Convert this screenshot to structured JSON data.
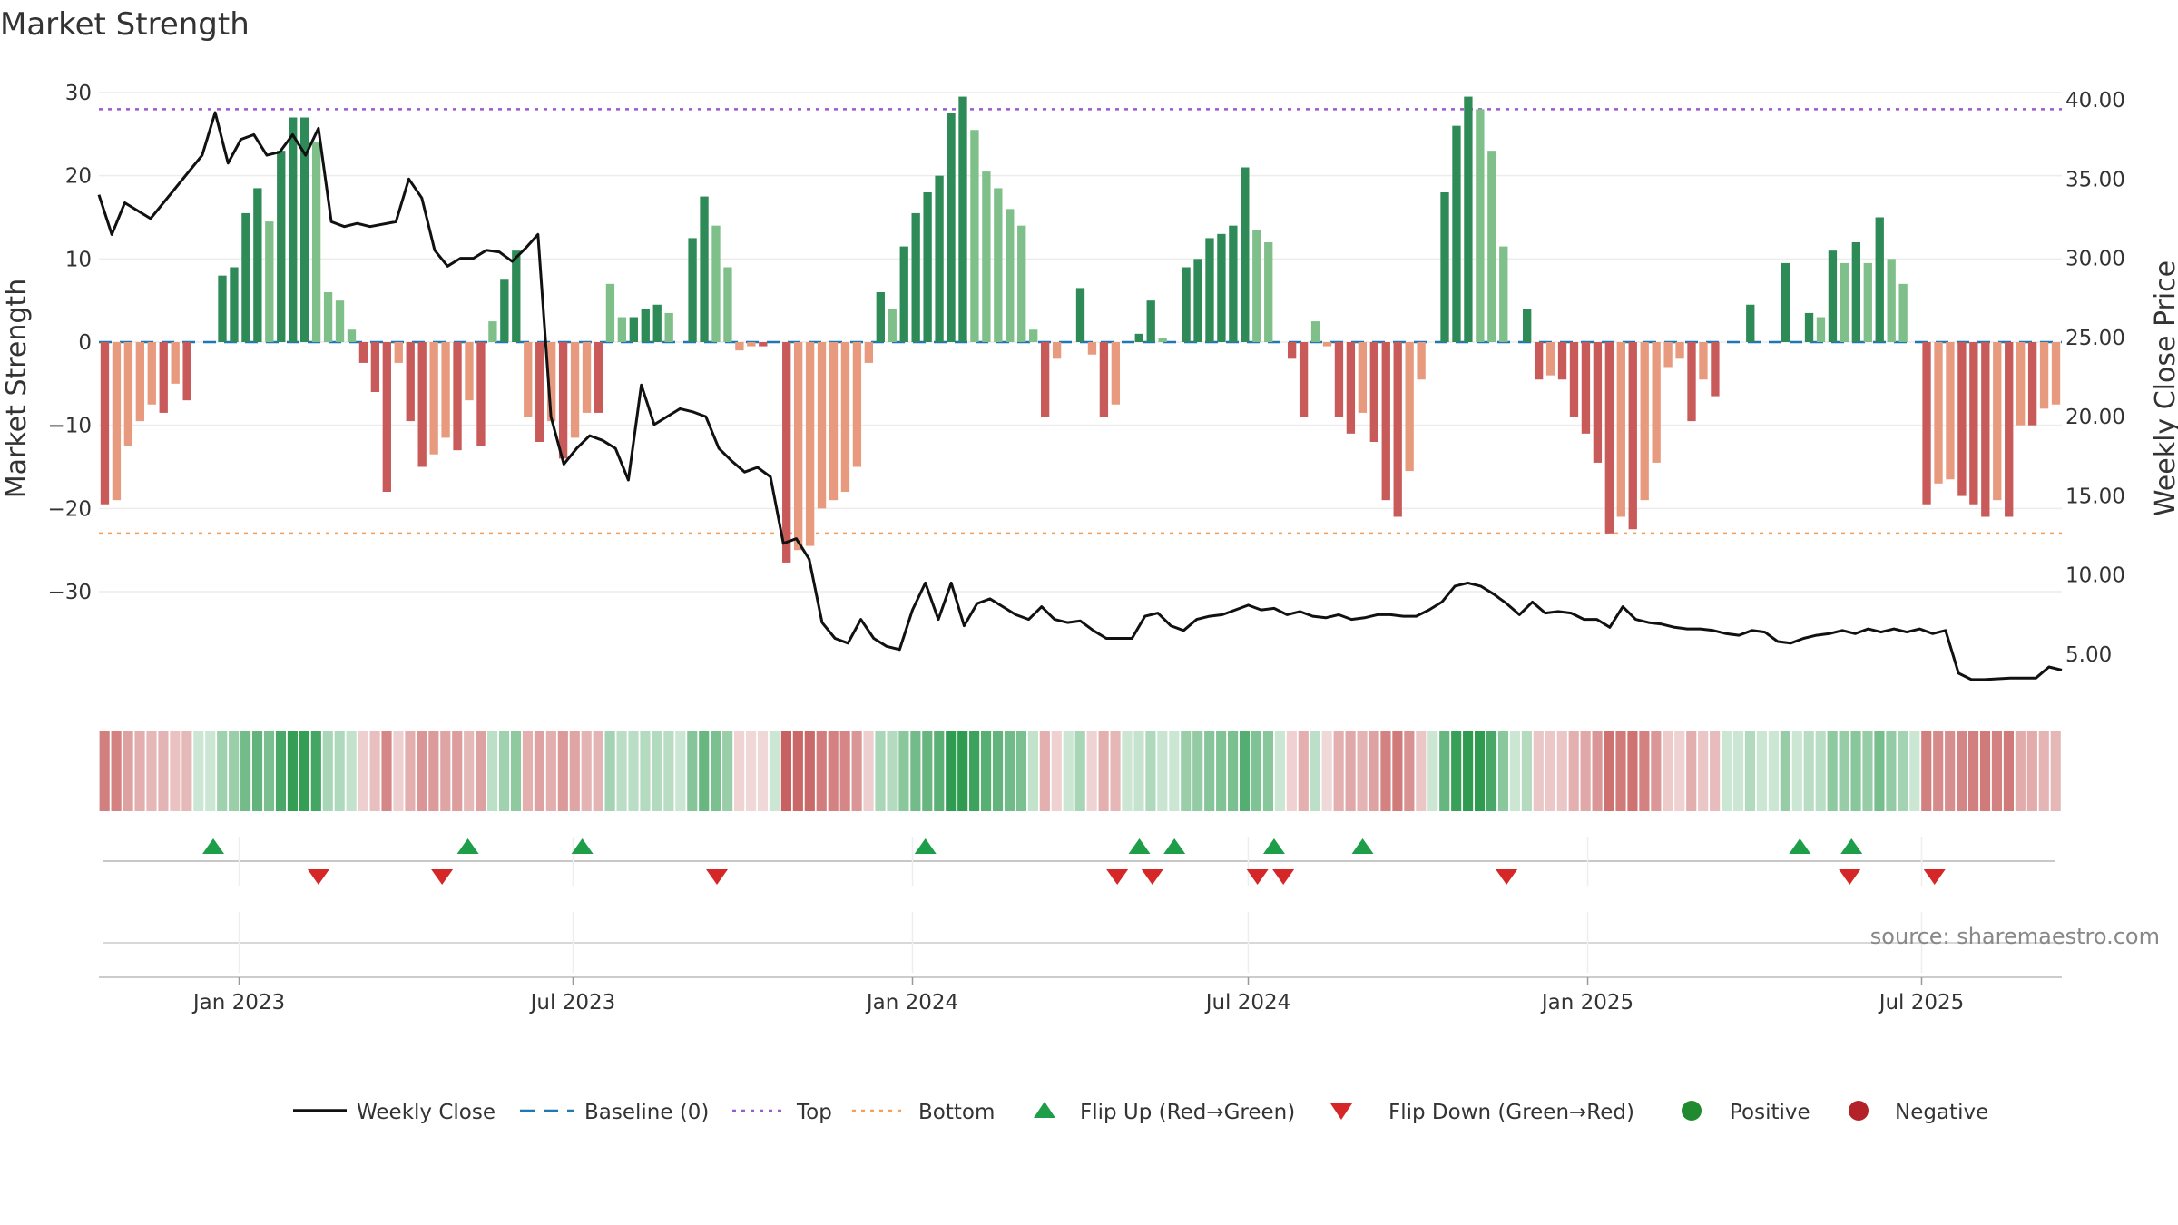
{
  "chart_data": {
    "type": "bar",
    "title": "Market Strength",
    "ylabel_left": "Market Strength",
    "ylabel_right": "Weekly Close Price",
    "ylim_left": [
      -33,
      32
    ],
    "ylim_right": [
      2.0,
      41.0
    ],
    "yticks_left": [
      30,
      20,
      10,
      0,
      -10,
      -20,
      -30
    ],
    "yticks_left_labels": [
      "30",
      "20",
      "10",
      "0",
      "−10",
      "−20",
      "−30"
    ],
    "yticks_right": [
      40,
      35,
      30,
      25,
      20,
      15,
      10,
      5
    ],
    "yticks_right_labels": [
      "40.00",
      "35.00",
      "30.00",
      "25.00",
      "20.00",
      "15.00",
      "10.00",
      "5.00"
    ],
    "x_start": "2022-10-17",
    "x_end": "2025-09-15",
    "x_ticks": [
      {
        "date": "2023-01-01",
        "label": "Jan 2023"
      },
      {
        "date": "2023-07-01",
        "label": "Jul 2023"
      },
      {
        "date": "2024-01-01",
        "label": "Jan 2024"
      },
      {
        "date": "2024-07-01",
        "label": "Jul 2024"
      },
      {
        "date": "2025-01-01",
        "label": "Jan 2025"
      },
      {
        "date": "2025-07-01",
        "label": "Jul 2025"
      }
    ],
    "top_level": 28,
    "bottom_level": -23,
    "grid": true,
    "strength": [
      -19.5,
      -19,
      -12.5,
      -9.5,
      -7.5,
      -8.5,
      -5,
      -7,
      0,
      0,
      8,
      9,
      15.5,
      18.5,
      14.5,
      23,
      27,
      27,
      24,
      6,
      5,
      1.5,
      -2.5,
      -6,
      -18,
      -2.5,
      -9.5,
      -15,
      -13.5,
      -11.5,
      -13,
      -7,
      -12.5,
      2.5,
      7.5,
      11,
      -9,
      -12,
      -9.5,
      -14,
      -11.5,
      -8.5,
      -8.5,
      7,
      3,
      3,
      4,
      4.5,
      3.5,
      0,
      12.5,
      17.5,
      14,
      9,
      -1,
      -0.5,
      -0.5,
      0,
      -26.5,
      -25,
      -24.5,
      -20,
      -19,
      -18,
      -15,
      -2.5,
      6,
      4,
      11.5,
      15.5,
      18,
      20,
      27.5,
      29.5,
      25.5,
      20.5,
      18.5,
      16,
      14,
      1.5,
      -9,
      -2,
      0,
      6.5,
      -1.5,
      -9,
      -7.5,
      0,
      1,
      5,
      0.5,
      0,
      9,
      10,
      12.5,
      13,
      14,
      21,
      13.5,
      12,
      0,
      -2,
      -9,
      2.5,
      -0.5,
      -9,
      -11,
      -8.5,
      -12,
      -19,
      -21,
      -15.5,
      -4.5,
      0,
      18,
      26,
      29.5,
      28,
      23,
      11.5,
      0,
      4,
      -4.5,
      -4,
      -4.5,
      -9,
      -11,
      -14.5,
      -23,
      -21,
      -22.5,
      -19,
      -14.5,
      -3,
      -2,
      -9.5,
      -4.5,
      -6.5,
      0,
      0,
      4.5,
      0,
      0,
      9.5,
      0,
      3.5,
      3,
      11,
      9.5,
      12,
      9.5,
      15,
      10,
      7,
      0,
      -19.5,
      -17,
      -16.5,
      -18.5,
      -19.5,
      -21,
      -19,
      -21,
      -10,
      -10,
      -8,
      -7.5
    ],
    "strength_first_date": "2022-10-17",
    "strength_interval_days": 6.35,
    "weekly_close": [
      [
        "2022-10-17",
        34
      ],
      [
        "2022-10-24",
        31.5
      ],
      [
        "2022-10-31",
        33.5
      ],
      [
        "2022-11-14",
        32.5
      ],
      [
        "2022-11-28",
        34.5
      ],
      [
        "2022-12-12",
        36.5
      ],
      [
        "2022-12-19",
        39.2
      ],
      [
        "2022-12-26",
        36
      ],
      [
        "2023-01-02",
        37.5
      ],
      [
        "2023-01-09",
        37.8
      ],
      [
        "2023-01-16",
        36.5
      ],
      [
        "2023-01-23",
        36.7
      ],
      [
        "2023-01-30",
        37.8
      ],
      [
        "2023-02-06",
        36.5
      ],
      [
        "2023-02-13",
        38.2
      ],
      [
        "2023-02-20",
        32.3
      ],
      [
        "2023-02-27",
        32
      ],
      [
        "2023-03-06",
        32.2
      ],
      [
        "2023-03-13",
        32
      ],
      [
        "2023-03-27",
        32.3
      ],
      [
        "2023-04-03",
        35
      ],
      [
        "2023-04-10",
        33.8
      ],
      [
        "2023-04-17",
        30.5
      ],
      [
        "2023-04-24",
        29.5
      ],
      [
        "2023-05-01",
        30
      ],
      [
        "2023-05-08",
        30
      ],
      [
        "2023-05-15",
        30.5
      ],
      [
        "2023-05-22",
        30.4
      ],
      [
        "2023-05-29",
        29.8
      ],
      [
        "2023-06-05",
        30.6
      ],
      [
        "2023-06-12",
        31.5
      ],
      [
        "2023-06-19",
        20
      ],
      [
        "2023-06-26",
        17
      ],
      [
        "2023-07-03",
        18
      ],
      [
        "2023-07-10",
        18.8
      ],
      [
        "2023-07-17",
        18.5
      ],
      [
        "2023-07-24",
        18
      ],
      [
        "2023-07-31",
        16
      ],
      [
        "2023-08-07",
        22
      ],
      [
        "2023-08-14",
        19.5
      ],
      [
        "2023-08-21",
        20
      ],
      [
        "2023-08-28",
        20.5
      ],
      [
        "2023-09-04",
        20.3
      ],
      [
        "2023-09-11",
        20
      ],
      [
        "2023-09-18",
        18
      ],
      [
        "2023-09-25",
        17.2
      ],
      [
        "2023-10-02",
        16.5
      ],
      [
        "2023-10-09",
        16.8
      ],
      [
        "2023-10-16",
        16.2
      ],
      [
        "2023-10-23",
        12
      ],
      [
        "2023-10-30",
        12.3
      ],
      [
        "2023-11-06",
        11
      ],
      [
        "2023-11-13",
        7
      ],
      [
        "2023-11-20",
        6
      ],
      [
        "2023-11-27",
        5.7
      ],
      [
        "2023-12-04",
        7.2
      ],
      [
        "2023-12-11",
        6
      ],
      [
        "2023-12-18",
        5.5
      ],
      [
        "2023-12-25",
        5.3
      ],
      [
        "2024-01-01",
        7.8
      ],
      [
        "2024-01-08",
        9.5
      ],
      [
        "2024-01-15",
        7.2
      ],
      [
        "2024-01-22",
        9.5
      ],
      [
        "2024-01-29",
        6.8
      ],
      [
        "2024-02-05",
        8.2
      ],
      [
        "2024-02-12",
        8.5
      ],
      [
        "2024-02-19",
        8
      ],
      [
        "2024-02-26",
        7.5
      ],
      [
        "2024-03-04",
        7.2
      ],
      [
        "2024-03-11",
        8
      ],
      [
        "2024-03-18",
        7.2
      ],
      [
        "2024-03-25",
        7
      ],
      [
        "2024-04-01",
        7.1
      ],
      [
        "2024-04-08",
        6.5
      ],
      [
        "2024-04-15",
        6
      ],
      [
        "2024-04-22",
        6
      ],
      [
        "2024-04-29",
        6
      ],
      [
        "2024-05-06",
        7.4
      ],
      [
        "2024-05-13",
        7.6
      ],
      [
        "2024-05-20",
        6.8
      ],
      [
        "2024-05-27",
        6.5
      ],
      [
        "2024-06-03",
        7.2
      ],
      [
        "2024-06-10",
        7.4
      ],
      [
        "2024-06-17",
        7.5
      ],
      [
        "2024-06-24",
        7.8
      ],
      [
        "2024-07-01",
        8.1
      ],
      [
        "2024-07-08",
        7.8
      ],
      [
        "2024-07-15",
        7.9
      ],
      [
        "2024-07-22",
        7.5
      ],
      [
        "2024-07-29",
        7.7
      ],
      [
        "2024-08-05",
        7.4
      ],
      [
        "2024-08-12",
        7.3
      ],
      [
        "2024-08-19",
        7.5
      ],
      [
        "2024-08-26",
        7.2
      ],
      [
        "2024-09-02",
        7.3
      ],
      [
        "2024-09-09",
        7.5
      ],
      [
        "2024-09-16",
        7.5
      ],
      [
        "2024-09-23",
        7.4
      ],
      [
        "2024-09-30",
        7.4
      ],
      [
        "2024-10-07",
        7.8
      ],
      [
        "2024-10-14",
        8.3
      ],
      [
        "2024-10-21",
        9.3
      ],
      [
        "2024-10-28",
        9.5
      ],
      [
        "2024-11-04",
        9.3
      ],
      [
        "2024-11-11",
        8.8
      ],
      [
        "2024-11-18",
        8.2
      ],
      [
        "2024-11-25",
        7.5
      ],
      [
        "2024-12-02",
        8.3
      ],
      [
        "2024-12-09",
        7.6
      ],
      [
        "2024-12-16",
        7.7
      ],
      [
        "2024-12-23",
        7.6
      ],
      [
        "2024-12-30",
        7.2
      ],
      [
        "2025-01-06",
        7.2
      ],
      [
        "2025-01-13",
        6.7
      ],
      [
        "2025-01-20",
        8
      ],
      [
        "2025-01-27",
        7.2
      ],
      [
        "2025-02-03",
        7
      ],
      [
        "2025-02-10",
        6.9
      ],
      [
        "2025-02-17",
        6.7
      ],
      [
        "2025-02-24",
        6.6
      ],
      [
        "2025-03-03",
        6.6
      ],
      [
        "2025-03-10",
        6.5
      ],
      [
        "2025-03-17",
        6.3
      ],
      [
        "2025-03-24",
        6.2
      ],
      [
        "2025-03-31",
        6.5
      ],
      [
        "2025-04-07",
        6.4
      ],
      [
        "2025-04-14",
        5.8
      ],
      [
        "2025-04-21",
        5.7
      ],
      [
        "2025-04-28",
        6
      ],
      [
        "2025-05-05",
        6.2
      ],
      [
        "2025-05-12",
        6.3
      ],
      [
        "2025-05-19",
        6.5
      ],
      [
        "2025-05-26",
        6.3
      ],
      [
        "2025-06-02",
        6.6
      ],
      [
        "2025-06-09",
        6.4
      ],
      [
        "2025-06-16",
        6.6
      ],
      [
        "2025-06-23",
        6.4
      ],
      [
        "2025-06-30",
        6.6
      ],
      [
        "2025-07-07",
        6.3
      ],
      [
        "2025-07-14",
        6.5
      ],
      [
        "2025-07-21",
        3.8
      ],
      [
        "2025-07-28",
        3.4
      ],
      [
        "2025-08-04",
        3.4
      ],
      [
        "2025-08-18",
        3.5
      ],
      [
        "2025-09-01",
        3.5
      ],
      [
        "2025-09-08",
        4.2
      ],
      [
        "2025-09-15",
        4
      ]
    ],
    "flip_up_dates": [
      "2022-12-18",
      "2023-05-05",
      "2023-07-06",
      "2024-01-08",
      "2024-05-03",
      "2024-05-22",
      "2024-07-15",
      "2024-09-01",
      "2025-04-26",
      "2025-05-24"
    ],
    "flip_down_dates": [
      "2023-02-13",
      "2023-04-21",
      "2023-09-17",
      "2024-04-21",
      "2024-05-10",
      "2024-07-06",
      "2024-07-20",
      "2024-11-18",
      "2025-05-23",
      "2025-07-08"
    ],
    "colors": {
      "positive_strong": "#2e8b57",
      "positive_weak": "#7fc08a",
      "negative_strong": "#c85a5a",
      "negative_weak": "#e89a7e",
      "close_line": "#111111",
      "baseline": "#1f77b4",
      "top": "#9b59d0",
      "bottom": "#f2a05a",
      "flip_up": "#1e9e48",
      "flip_down": "#d62728",
      "positive_dot": "#1f8a2e",
      "negative_dot": "#b22228"
    }
  },
  "legend": {
    "weekly_close": "Weekly Close",
    "baseline": "Baseline (0)",
    "top": "Top",
    "bottom": "Bottom",
    "flip_up": "Flip Up (Red→Green)",
    "flip_down": "Flip Down (Green→Red)",
    "positive": "Positive",
    "negative": "Negative"
  },
  "source": "source: sharemaestro.com"
}
